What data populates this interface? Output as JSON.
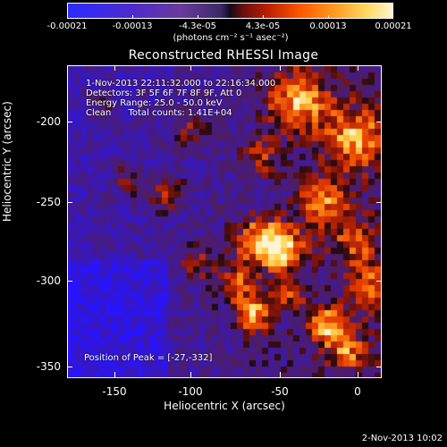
{
  "colorbar": {
    "labels": [
      "-0.00021",
      "-0.00013",
      "-4.3e-05",
      "4.3e-05",
      "0.00013",
      "0.00021"
    ],
    "unit": "(photons cm⁻² s⁻¹ asec⁻²)"
  },
  "plot": {
    "title": "Reconstructed RHESSI Image",
    "annotation_lines": [
      "1-Nov-2013 22:11:32.000 to 22:16:34.000",
      "Detectors: 3F 5F 6F 7F 8F 9F, Att 0",
      "Energy Range: 25.0 - 50.0 keV",
      "Clean      Total counts: 1.41E+04"
    ],
    "peak_text": "Position of Peak = [-27,-332]",
    "xlabel": "Heliocentric X (arcsec)",
    "ylabel": "Heliocentric Y (arcsec)",
    "xticks": [
      "-150",
      "-100",
      "-50",
      "0"
    ],
    "yticks": [
      "-200",
      "-250",
      "-300",
      "-350"
    ]
  },
  "footer": {
    "date": "2-Nov-2013 10:02"
  }
}
